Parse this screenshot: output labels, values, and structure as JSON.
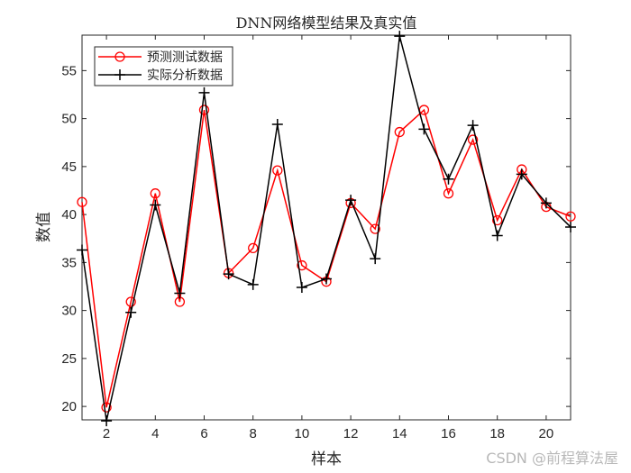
{
  "chart_data": {
    "type": "line",
    "title": "DNN网络模型结果及真实值",
    "xlabel": "样本",
    "ylabel": "数值",
    "xlim": [
      1,
      21
    ],
    "ylim": [
      18.6,
      58.7
    ],
    "xticks": [
      2,
      4,
      6,
      8,
      10,
      12,
      14,
      16,
      18,
      20
    ],
    "yticks": [
      20,
      25,
      30,
      35,
      40,
      45,
      50,
      55
    ],
    "grid": false,
    "legend_position": "top-left",
    "x": [
      1,
      2,
      3,
      4,
      5,
      6,
      7,
      8,
      9,
      10,
      11,
      12,
      13,
      14,
      15,
      16,
      17,
      18,
      19,
      20,
      21
    ],
    "series": [
      {
        "name": "预测测试数据",
        "color": "#ff0000",
        "marker": "circle",
        "values": [
          41.3,
          19.9,
          30.9,
          42.2,
          30.9,
          50.9,
          33.9,
          36.5,
          44.6,
          34.7,
          33.0,
          41.2,
          38.5,
          48.6,
          50.9,
          42.2,
          47.8,
          39.4,
          44.7,
          40.8,
          39.8
        ]
      },
      {
        "name": "实际分析数据",
        "color": "#000000",
        "marker": "plus",
        "values": [
          36.3,
          18.5,
          29.8,
          41.0,
          31.8,
          52.7,
          33.8,
          32.7,
          49.4,
          32.4,
          33.3,
          41.5,
          35.4,
          58.6,
          48.9,
          43.7,
          49.3,
          37.8,
          44.2,
          41.2,
          38.7
        ]
      }
    ]
  },
  "watermark": "CSDN @前程算法屋"
}
